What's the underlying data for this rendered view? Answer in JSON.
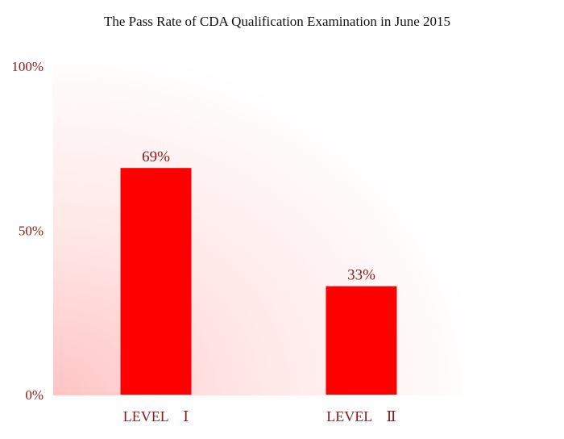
{
  "chart_data": {
    "type": "bar",
    "title": "The Pass Rate of CDA Qualification Examination in June 2015",
    "categories": [
      "LEVEL　Ⅰ",
      "LEVEL　Ⅱ"
    ],
    "values": [
      69,
      33
    ],
    "data_labels": [
      "69%",
      "33%"
    ],
    "ylim": [
      0,
      100
    ],
    "yticks": [
      0,
      50,
      100
    ],
    "ytick_labels": [
      "0%",
      "50%",
      "100%"
    ],
    "xlabel": "",
    "ylabel": "",
    "grid": false,
    "legend": "none",
    "colors": {
      "bar": "#ff0000",
      "text": "#8b1a1a",
      "title": "#111111",
      "background_glow": "#ffb0b0"
    }
  }
}
